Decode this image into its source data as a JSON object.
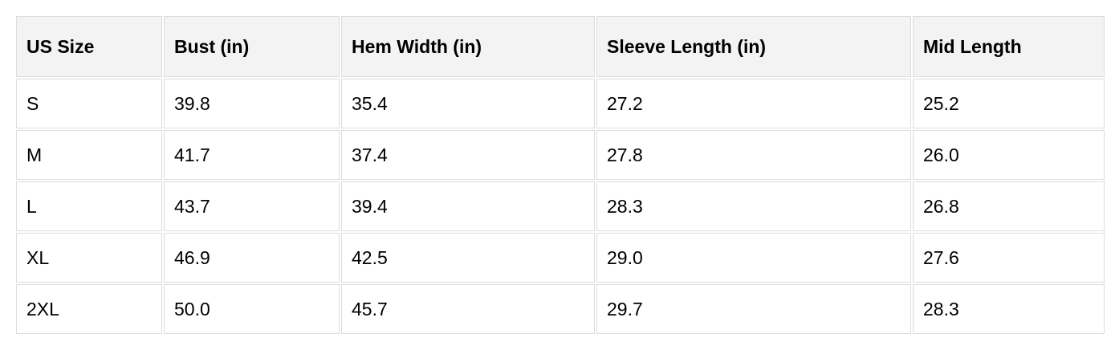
{
  "table": {
    "headers": [
      "US Size",
      "Bust (in)",
      "Hem Width (in)",
      "Sleeve Length (in)",
      "Mid Length"
    ],
    "rows": [
      [
        "S",
        "39.8",
        "35.4",
        "27.2",
        "25.2"
      ],
      [
        "M",
        "41.7",
        "37.4",
        "27.8",
        "26.0"
      ],
      [
        "L",
        "43.7",
        "39.4",
        "28.3",
        "26.8"
      ],
      [
        "XL",
        "46.9",
        "42.5",
        "29.0",
        "27.6"
      ],
      [
        "2XL",
        "50.0",
        "45.7",
        "29.7",
        "28.3"
      ]
    ]
  }
}
